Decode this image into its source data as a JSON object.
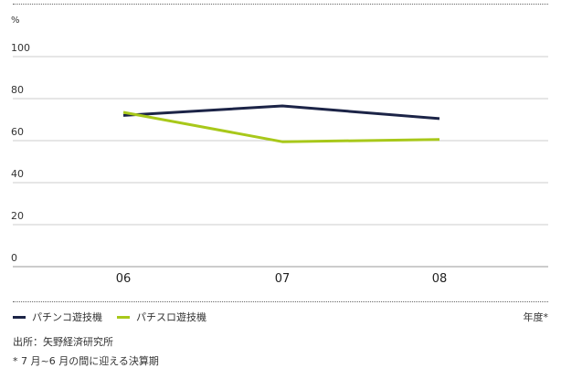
{
  "chart_data": {
    "type": "line",
    "title": "",
    "ylabel": "%",
    "xlabel": "年度*",
    "categories": [
      "06",
      "07",
      "08"
    ],
    "ylim": [
      0,
      100
    ],
    "yticks": [
      0,
      20,
      40,
      60,
      80,
      100
    ],
    "grid": true,
    "legend_position": "bottom-left",
    "series": [
      {
        "name": "パチンコ遊技機",
        "values": [
          72,
          76.5,
          70.5
        ],
        "color": "#1c2447"
      },
      {
        "name": "パチスロ遊技機",
        "values": [
          73.5,
          59.5,
          60.5
        ],
        "color": "#a8c81a"
      }
    ]
  },
  "footer": {
    "source": "出所：矢野経済研究所",
    "note": "* 7 月~6 月の間に迎える決算期"
  }
}
